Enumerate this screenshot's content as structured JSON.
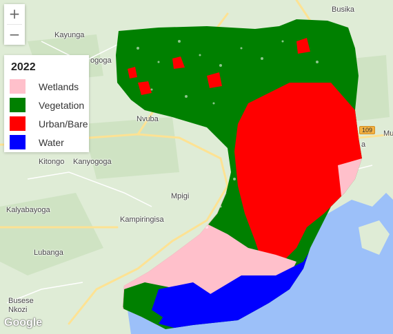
{
  "zoom": {
    "in_label": "+",
    "out_label": "−"
  },
  "legend": {
    "title": "2022",
    "items": [
      {
        "label": "Wetlands",
        "color": "#ffc0cb"
      },
      {
        "label": "Vegetation",
        "color": "#008000"
      },
      {
        "label": "Urban/Bare",
        "color": "#ff0000"
      },
      {
        "label": "Water",
        "color": "#0000ff"
      }
    ]
  },
  "places": {
    "busika": "Busika",
    "kayunga": "Kayunga",
    "ogoga": "ogoga",
    "nvuba": "Nvuba",
    "kitongo": "Kitongo",
    "kanyogoga": "Kanyogoga",
    "mpigi": "Mpigi",
    "kalyabayoga": "Kalyabayoga",
    "kampiringisa": "Kampiringisa",
    "lubanga": "Lubanga",
    "busese": "Busese",
    "nkozi": "Nkozi",
    "mu": "Mu",
    "ya": "a"
  },
  "road_badge": "109",
  "attribution": {
    "logo": "Google"
  },
  "colors": {
    "basemap": "#dfecd6",
    "lake": "#9cc0f9",
    "road": "#fde293",
    "wetlands": "#ffc0cb",
    "vegetation": "#008000",
    "urban": "#ff0000",
    "water": "#0000ff"
  }
}
